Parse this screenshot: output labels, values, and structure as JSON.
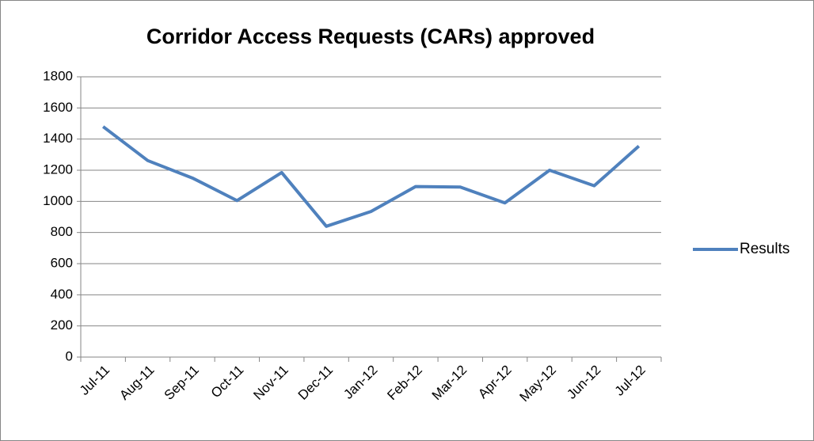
{
  "chart_data": {
    "type": "line",
    "title": "Corridor Access Requests (CARs) approved",
    "categories": [
      "Jul-11",
      "Aug-11",
      "Sep-11",
      "Oct-11",
      "Nov-11",
      "Dec-11",
      "Jan-12",
      "Feb-12",
      "Mar-12",
      "Apr-12",
      "May-12",
      "Jun-12",
      "Jul-12"
    ],
    "series": [
      {
        "name": "Results",
        "color": "#4f81bd",
        "values": [
          1480,
          1262,
          1150,
          1005,
          1185,
          840,
          935,
          1095,
          1092,
          990,
          1200,
          1100,
          1355
        ]
      }
    ],
    "ylim": [
      0,
      1800
    ],
    "yticks": [
      0,
      200,
      400,
      600,
      800,
      1000,
      1200,
      1400,
      1600,
      1800
    ],
    "grid": true,
    "legend": "right"
  }
}
